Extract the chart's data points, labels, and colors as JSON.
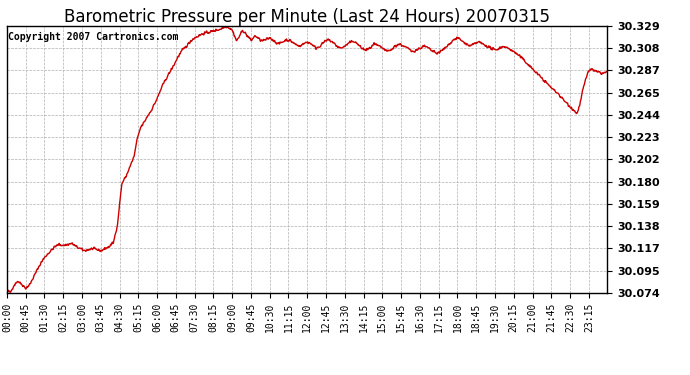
{
  "title": "Barometric Pressure per Minute (Last 24 Hours) 20070315",
  "copyright_text": "Copyright 2007 Cartronics.com",
  "line_color": "#cc0000",
  "background_color": "#ffffff",
  "plot_bg_color": "#ffffff",
  "grid_color": "#b0b0b0",
  "yticks": [
    30.074,
    30.095,
    30.117,
    30.138,
    30.159,
    30.18,
    30.202,
    30.223,
    30.244,
    30.265,
    30.287,
    30.308,
    30.329
  ],
  "ylim": [
    30.074,
    30.329
  ],
  "xtick_labels": [
    "00:00",
    "00:45",
    "01:30",
    "02:15",
    "03:00",
    "03:45",
    "04:30",
    "05:15",
    "06:00",
    "06:45",
    "07:30",
    "08:15",
    "09:00",
    "09:45",
    "10:30",
    "11:15",
    "12:00",
    "12:45",
    "13:30",
    "14:15",
    "15:00",
    "15:45",
    "16:30",
    "17:15",
    "18:00",
    "18:45",
    "19:30",
    "20:15",
    "21:00",
    "21:45",
    "22:30",
    "23:15"
  ],
  "title_fontsize": 12,
  "copyright_fontsize": 7,
  "ytick_fontsize": 8,
  "xtick_fontsize": 7,
  "line_width": 1.0,
  "keypoints": [
    [
      0,
      30.076
    ],
    [
      8,
      30.074
    ],
    [
      15,
      30.08
    ],
    [
      25,
      30.085
    ],
    [
      35,
      30.082
    ],
    [
      45,
      30.078
    ],
    [
      55,
      30.082
    ],
    [
      65,
      30.09
    ],
    [
      75,
      30.098
    ],
    [
      85,
      30.105
    ],
    [
      95,
      30.11
    ],
    [
      105,
      30.114
    ],
    [
      115,
      30.118
    ],
    [
      125,
      30.12
    ],
    [
      135,
      30.119
    ],
    [
      145,
      30.12
    ],
    [
      155,
      30.121
    ],
    [
      165,
      30.118
    ],
    [
      175,
      30.116
    ],
    [
      185,
      30.114
    ],
    [
      195,
      30.115
    ],
    [
      205,
      30.116
    ],
    [
      215,
      30.115
    ],
    [
      225,
      30.114
    ],
    [
      235,
      30.116
    ],
    [
      245,
      30.118
    ],
    [
      255,
      30.122
    ],
    [
      265,
      30.14
    ],
    [
      270,
      30.16
    ],
    [
      275,
      30.178
    ],
    [
      280,
      30.182
    ],
    [
      285,
      30.185
    ],
    [
      290,
      30.19
    ],
    [
      295,
      30.195
    ],
    [
      300,
      30.2
    ],
    [
      305,
      30.205
    ],
    [
      310,
      30.218
    ],
    [
      315,
      30.225
    ],
    [
      320,
      30.232
    ],
    [
      325,
      30.235
    ],
    [
      330,
      30.238
    ],
    [
      335,
      30.242
    ],
    [
      340,
      30.245
    ],
    [
      345,
      30.248
    ],
    [
      350,
      30.252
    ],
    [
      360,
      30.26
    ],
    [
      370,
      30.27
    ],
    [
      380,
      30.278
    ],
    [
      390,
      30.285
    ],
    [
      400,
      30.292
    ],
    [
      410,
      30.3
    ],
    [
      420,
      30.306
    ],
    [
      430,
      30.31
    ],
    [
      440,
      30.315
    ],
    [
      450,
      30.318
    ],
    [
      460,
      30.32
    ],
    [
      470,
      30.322
    ],
    [
      480,
      30.323
    ],
    [
      490,
      30.324
    ],
    [
      500,
      30.325
    ],
    [
      510,
      30.326
    ],
    [
      520,
      30.328
    ],
    [
      525,
      30.329
    ],
    [
      530,
      30.328
    ],
    [
      535,
      30.327
    ],
    [
      540,
      30.325
    ],
    [
      545,
      30.32
    ],
    [
      550,
      30.315
    ],
    [
      555,
      30.318
    ],
    [
      560,
      30.322
    ],
    [
      565,
      30.325
    ],
    [
      570,
      30.323
    ],
    [
      575,
      30.32
    ],
    [
      580,
      30.318
    ],
    [
      585,
      30.315
    ],
    [
      590,
      30.318
    ],
    [
      595,
      30.32
    ],
    [
      600,
      30.318
    ],
    [
      610,
      30.315
    ],
    [
      620,
      30.316
    ],
    [
      630,
      30.318
    ],
    [
      640,
      30.315
    ],
    [
      650,
      30.312
    ],
    [
      660,
      30.314
    ],
    [
      670,
      30.316
    ],
    [
      680,
      30.315
    ],
    [
      690,
      30.312
    ],
    [
      700,
      30.31
    ],
    [
      710,
      30.312
    ],
    [
      720,
      30.314
    ],
    [
      730,
      30.312
    ],
    [
      740,
      30.308
    ],
    [
      750,
      30.31
    ],
    [
      760,
      30.314
    ],
    [
      770,
      30.316
    ],
    [
      780,
      30.314
    ],
    [
      790,
      30.31
    ],
    [
      800,
      30.308
    ],
    [
      810,
      30.31
    ],
    [
      820,
      30.313
    ],
    [
      830,
      30.315
    ],
    [
      840,
      30.312
    ],
    [
      850,
      30.308
    ],
    [
      860,
      30.306
    ],
    [
      870,
      30.308
    ],
    [
      880,
      30.312
    ],
    [
      890,
      30.31
    ],
    [
      900,
      30.308
    ],
    [
      910,
      30.305
    ],
    [
      920,
      30.306
    ],
    [
      930,
      30.31
    ],
    [
      940,
      30.312
    ],
    [
      950,
      30.31
    ],
    [
      960,
      30.308
    ],
    [
      970,
      30.305
    ],
    [
      980,
      30.306
    ],
    [
      990,
      30.308
    ],
    [
      1000,
      30.31
    ],
    [
      1010,
      30.308
    ],
    [
      1020,
      30.305
    ],
    [
      1030,
      30.303
    ],
    [
      1040,
      30.305
    ],
    [
      1050,
      30.308
    ],
    [
      1060,
      30.312
    ],
    [
      1070,
      30.316
    ],
    [
      1080,
      30.318
    ],
    [
      1090,
      30.315
    ],
    [
      1100,
      30.312
    ],
    [
      1110,
      30.31
    ],
    [
      1120,
      30.312
    ],
    [
      1130,
      30.314
    ],
    [
      1140,
      30.312
    ],
    [
      1150,
      30.31
    ],
    [
      1160,
      30.308
    ],
    [
      1170,
      30.306
    ],
    [
      1180,
      30.308
    ],
    [
      1190,
      30.31
    ],
    [
      1200,
      30.308
    ],
    [
      1210,
      30.306
    ],
    [
      1220,
      30.303
    ],
    [
      1230,
      30.3
    ],
    [
      1240,
      30.296
    ],
    [
      1250,
      30.292
    ],
    [
      1260,
      30.288
    ],
    [
      1270,
      30.284
    ],
    [
      1280,
      30.28
    ],
    [
      1290,
      30.276
    ],
    [
      1300,
      30.272
    ],
    [
      1310,
      30.268
    ],
    [
      1320,
      30.265
    ],
    [
      1330,
      30.26
    ],
    [
      1340,
      30.256
    ],
    [
      1350,
      30.252
    ],
    [
      1360,
      30.248
    ],
    [
      1365,
      30.245
    ],
    [
      1370,
      30.25
    ],
    [
      1375,
      30.258
    ],
    [
      1380,
      30.268
    ],
    [
      1385,
      30.275
    ],
    [
      1390,
      30.282
    ],
    [
      1395,
      30.287
    ],
    [
      1400,
      30.288
    ],
    [
      1405,
      30.287
    ],
    [
      1410,
      30.286
    ],
    [
      1415,
      30.285
    ],
    [
      1420,
      30.285
    ],
    [
      1425,
      30.284
    ],
    [
      1430,
      30.284
    ],
    [
      1435,
      30.285
    ],
    [
      1439,
      30.285
    ]
  ]
}
